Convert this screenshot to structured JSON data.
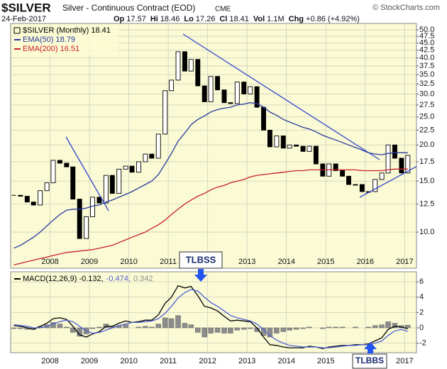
{
  "header": {
    "symbol": "$SILVER",
    "name": "Silver - Continuous Contract (EOD)",
    "exchange": "CME",
    "date": "24-Feb-2017",
    "copyright": "© StockCharts.com",
    "quote": [
      {
        "label": "Op",
        "value": "17.57"
      },
      {
        "label": "Hi",
        "value": "18.46"
      },
      {
        "label": "Lo",
        "value": "17.26"
      },
      {
        "label": "Cl",
        "value": "18.41"
      },
      {
        "label": "Vol",
        "value": "1.1M"
      },
      {
        "label": "Chg",
        "value": "+0.86 (+4.92%)"
      }
    ]
  },
  "chart_data": [
    {
      "type": "candlestick",
      "log": true,
      "grid": true,
      "xlim": [
        2007,
        2017.3
      ],
      "xticks": [
        2008,
        2009,
        2010,
        2011,
        2012,
        2013,
        2014,
        2015,
        2016,
        2017
      ],
      "ylim": [
        7.5,
        52.6
      ],
      "yticks": [
        {
          "value": 10,
          "label": "10.0"
        },
        12.5,
        {
          "value": 15,
          "label": "15.0"
        },
        17.5,
        {
          "value": 20,
          "label": "20.0"
        },
        22.5,
        {
          "value": 25,
          "label": "25.0"
        },
        27.5,
        {
          "value": 30,
          "label": "30.0"
        },
        32.5,
        {
          "value": 35,
          "label": "35.0"
        },
        37.5,
        {
          "value": 40,
          "label": "40.0"
        },
        42.5,
        {
          "value": 45,
          "label": "45.0"
        },
        47.5,
        {
          "value": 50,
          "label": "50.0"
        }
      ],
      "x": [
        2007.08,
        2007.25,
        2007.42,
        2007.58,
        2007.75,
        2007.92,
        2008.08,
        2008.25,
        2008.42,
        2008.58,
        2008.75,
        2008.92,
        2009.08,
        2009.25,
        2009.42,
        2009.58,
        2009.75,
        2009.92,
        2010.08,
        2010.25,
        2010.42,
        2010.58,
        2010.75,
        2010.92,
        2011.08,
        2011.25,
        2011.42,
        2011.58,
        2011.75,
        2011.92,
        2012.08,
        2012.25,
        2012.42,
        2012.58,
        2012.75,
        2012.92,
        2013.08,
        2013.25,
        2013.42,
        2013.58,
        2013.75,
        2013.92,
        2014.08,
        2014.25,
        2014.42,
        2014.58,
        2014.75,
        2014.92,
        2015.08,
        2015.25,
        2015.42,
        2015.58,
        2015.75,
        2015.92,
        2016.08,
        2016.25,
        2016.42,
        2016.58,
        2016.75,
        2016.92,
        2017.08
      ],
      "series": [
        {
          "name": "$SILVER (Monthly) 18.41",
          "type": "candlestick",
          "color": "#000000",
          "values": [
            13.4,
            13.3,
            12.7,
            12.4,
            13.9,
            14.8,
            17.7,
            17.3,
            16.8,
            13.0,
            9.5,
            11.3,
            13.2,
            12.6,
            15.7,
            13.6,
            16.5,
            16.9,
            16.1,
            17.5,
            18.6,
            18.0,
            21.8,
            30.8,
            33.5,
            42.0,
            36.0,
            39.5,
            32.0,
            28.2,
            34.5,
            31.0,
            28.0,
            27.8,
            33.0,
            30.0,
            31.8,
            27.0,
            22.5,
            19.7,
            21.5,
            19.5,
            20.0,
            19.8,
            19.0,
            19.8,
            17.2,
            15.6,
            17.2,
            16.3,
            15.6,
            14.6,
            14.6,
            13.8,
            13.8,
            15.2,
            16.0,
            20.0,
            18.0,
            16.0,
            18.41
          ]
        },
        {
          "name": "EMA(50) 18.79",
          "type": "line",
          "color": "#2a3a9c",
          "values": [
            8.8,
            9.0,
            9.3,
            9.6,
            10.0,
            10.5,
            11.0,
            11.5,
            11.9,
            12.0,
            12.0,
            12.1,
            12.3,
            12.4,
            12.7,
            12.9,
            13.2,
            13.5,
            13.8,
            14.2,
            14.6,
            15.0,
            15.8,
            17.2,
            18.7,
            20.6,
            22.0,
            23.5,
            24.5,
            25.2,
            26.0,
            26.5,
            26.8,
            27.0,
            27.5,
            27.7,
            28.0,
            27.8,
            27.0,
            26.0,
            25.3,
            24.5,
            24.0,
            23.5,
            23.0,
            22.7,
            22.2,
            21.6,
            21.2,
            20.8,
            20.4,
            20.0,
            19.6,
            19.2,
            18.8,
            18.6,
            18.5,
            18.7,
            18.8,
            18.8,
            18.79
          ]
        },
        {
          "name": "EMA(200) 16.51",
          "type": "line",
          "color": "#c8202a",
          "values": [
            7.7,
            7.8,
            7.9,
            8.0,
            8.1,
            8.2,
            8.3,
            8.4,
            8.5,
            8.55,
            8.6,
            8.65,
            8.7,
            8.8,
            8.9,
            9.0,
            9.2,
            9.4,
            9.6,
            9.8,
            10.0,
            10.3,
            10.6,
            11.0,
            11.5,
            12.0,
            12.5,
            12.9,
            13.3,
            13.6,
            14.0,
            14.3,
            14.5,
            14.8,
            15.0,
            15.2,
            15.5,
            15.7,
            15.8,
            15.9,
            16.0,
            16.1,
            16.2,
            16.3,
            16.3,
            16.4,
            16.4,
            16.4,
            16.4,
            16.4,
            16.4,
            16.4,
            16.4,
            16.3,
            16.3,
            16.3,
            16.3,
            16.4,
            16.5,
            16.5,
            16.51
          ]
        }
      ]
    },
    {
      "type": "macd",
      "log": false,
      "grid": true,
      "xlim": [
        2007,
        2017.3
      ],
      "xticks": [
        2008,
        2009,
        2010,
        2011,
        2012,
        2013,
        2014,
        2015,
        2016,
        2017
      ],
      "ylim": [
        -3.24,
        7.31
      ],
      "yticks": [
        -2,
        0,
        2,
        4,
        6
      ],
      "annotations": [
        "TLBSS",
        "TLBBS"
      ],
      "x": [
        2007.08,
        2007.25,
        2007.42,
        2007.58,
        2007.75,
        2007.92,
        2008.08,
        2008.25,
        2008.42,
        2008.58,
        2008.75,
        2008.92,
        2009.08,
        2009.25,
        2009.42,
        2009.58,
        2009.75,
        2009.92,
        2010.08,
        2010.25,
        2010.42,
        2010.58,
        2010.75,
        2010.92,
        2011.08,
        2011.25,
        2011.42,
        2011.58,
        2011.75,
        2011.92,
        2012.08,
        2012.25,
        2012.42,
        2012.58,
        2012.75,
        2012.92,
        2013.08,
        2013.25,
        2013.42,
        2013.58,
        2013.75,
        2013.92,
        2014.08,
        2014.25,
        2014.42,
        2014.58,
        2014.75,
        2014.92,
        2015.08,
        2015.25,
        2015.42,
        2015.58,
        2015.75,
        2015.92,
        2016.08,
        2016.25,
        2016.42,
        2016.58,
        2016.75,
        2016.92,
        2017.08
      ],
      "series": [
        {
          "name": "0.342",
          "type": "bar",
          "color": "#8c8c8c",
          "values": [
            -0.1,
            -0.1,
            -0.2,
            -0.2,
            0.2,
            0.4,
            0.7,
            0.5,
            0.1,
            -0.6,
            -1.1,
            -0.8,
            -0.1,
            0.1,
            0.5,
            0.2,
            0.3,
            0.4,
            0.0,
            0.1,
            0.2,
            0.1,
            0.5,
            1.3,
            1.2,
            1.6,
            0.6,
            0.4,
            -0.6,
            -1.2,
            -0.7,
            -0.6,
            -0.7,
            -0.7,
            -0.3,
            -0.2,
            -0.1,
            -0.5,
            -1.0,
            -1.2,
            -0.7,
            -0.5,
            -0.3,
            -0.2,
            -0.1,
            0.1,
            0.0,
            -0.1,
            0.1,
            0.1,
            0.1,
            0.0,
            0.1,
            0.0,
            0.1,
            0.3,
            0.4,
            0.8,
            0.6,
            0.3,
            0.342
          ]
        },
        {
          "name": "MACD(12,26,9) -0.132,",
          "type": "line",
          "color": "#000000",
          "values": [
            0.3,
            0.2,
            0.0,
            -0.2,
            0.2,
            0.6,
            1.2,
            1.3,
            1.1,
            0.2,
            -0.9,
            -1.2,
            -0.8,
            -0.5,
            0.2,
            0.2,
            0.6,
            0.9,
            0.7,
            0.8,
            1.0,
            1.0,
            1.7,
            3.2,
            4.0,
            5.5,
            5.2,
            5.4,
            4.2,
            2.8,
            2.6,
            2.2,
            1.5,
            0.9,
            1.0,
            0.9,
            0.8,
            0.0,
            -1.2,
            -2.2,
            -2.3,
            -2.5,
            -2.6,
            -2.6,
            -2.6,
            -2.4,
            -2.5,
            -2.7,
            -2.5,
            -2.4,
            -2.3,
            -2.3,
            -2.2,
            -2.2,
            -2.1,
            -1.7,
            -1.3,
            -0.2,
            0.2,
            0.1,
            -0.132
          ]
        },
        {
          "name": "-0.474,",
          "type": "line",
          "color": "#5060d8",
          "values": [
            0.4,
            0.3,
            0.2,
            0.0,
            0.0,
            0.2,
            0.5,
            0.8,
            1.0,
            0.8,
            0.2,
            -0.4,
            -0.7,
            -0.6,
            -0.3,
            0.0,
            0.3,
            0.5,
            0.7,
            0.7,
            0.8,
            0.9,
            1.2,
            1.9,
            2.8,
            3.9,
            4.6,
            5.0,
            4.8,
            4.0,
            3.3,
            2.8,
            2.2,
            1.6,
            1.3,
            1.1,
            0.9,
            0.5,
            -0.2,
            -1.0,
            -1.6,
            -2.0,
            -2.3,
            -2.4,
            -2.5,
            -2.5,
            -2.5,
            -2.6,
            -2.6,
            -2.5,
            -2.4,
            -2.3,
            -2.3,
            -2.2,
            -2.2,
            -2.0,
            -1.7,
            -1.0,
            -0.4,
            -0.2,
            -0.474
          ]
        }
      ]
    }
  ]
}
